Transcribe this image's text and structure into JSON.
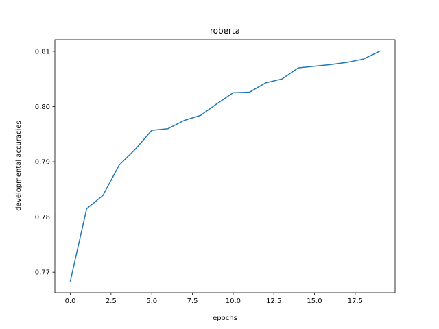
{
  "chart_data": {
    "type": "line",
    "title": "roberta",
    "xlabel": "epochs",
    "ylabel": "developmental accuracies",
    "xlim": [
      -0.95,
      19.95
    ],
    "ylim": [
      0.7663,
      0.8121
    ],
    "xticks": [
      0.0,
      2.5,
      5.0,
      7.5,
      10.0,
      12.5,
      15.0,
      17.5
    ],
    "xtick_labels": [
      "0.0",
      "2.5",
      "5.0",
      "7.5",
      "10.0",
      "12.5",
      "15.0",
      "17.5"
    ],
    "yticks": [
      0.77,
      0.78,
      0.79,
      0.8,
      0.81
    ],
    "ytick_labels": [
      "0.77",
      "0.78",
      "0.79",
      "0.80",
      "0.81"
    ],
    "grid": false,
    "line_color": "#1f77b4",
    "x": [
      0,
      1,
      2,
      3,
      4,
      5,
      6,
      7,
      8,
      9,
      10,
      11,
      12,
      13,
      14,
      15,
      16,
      17,
      18,
      19
    ],
    "values": [
      0.7684,
      0.7815,
      0.7839,
      0.7894,
      0.7923,
      0.7957,
      0.796,
      0.7975,
      0.7984,
      0.8005,
      0.8025,
      0.8026,
      0.8043,
      0.805,
      0.807,
      0.8073,
      0.8076,
      0.808,
      0.8086,
      0.81
    ]
  }
}
